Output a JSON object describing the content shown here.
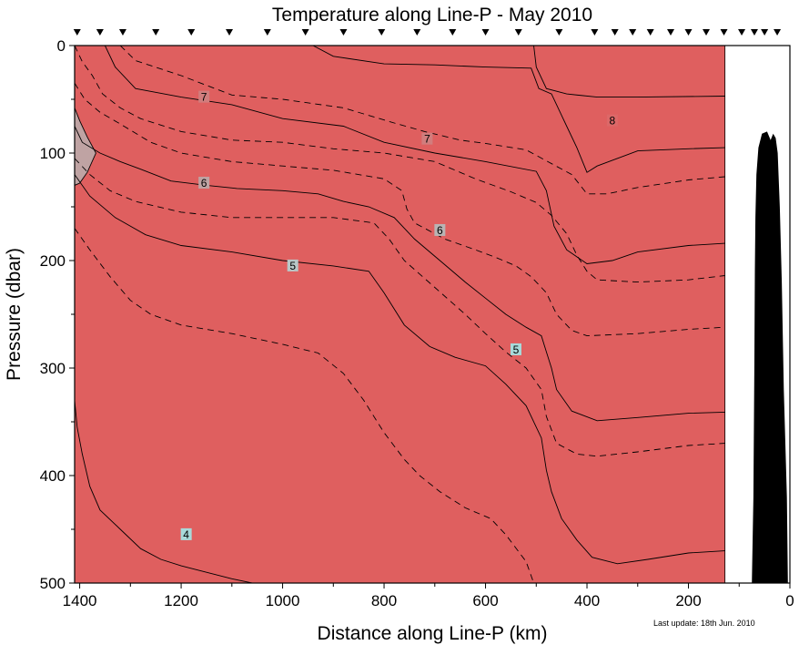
{
  "chart_data": {
    "type": "heatmap",
    "title": "Temperature along Line-P - May 2010",
    "xlabel": "Distance along Line-P (km)",
    "ylabel": "Pressure (dbar)",
    "footnote": "Last update: 18th Jun. 2010",
    "xlim": [
      1410,
      0
    ],
    "ylim": [
      500,
      0
    ],
    "xticks": [
      1400,
      1200,
      1000,
      800,
      600,
      400,
      200,
      0
    ],
    "yticks": [
      0,
      100,
      200,
      300,
      400,
      500
    ],
    "data_x_range": [
      1410,
      128
    ],
    "colors": {
      "warm": "#e15858",
      "mid": "#b7b7b7",
      "cold": "#a8dada",
      "seafloor": "#000000"
    },
    "color_stops": [
      {
        "t": 3.5,
        "c": "#a8dada"
      },
      {
        "t": 4.5,
        "c": "#b8c7c7"
      },
      {
        "t": 5.0,
        "c": "#b9b4b4"
      },
      {
        "t": 5.5,
        "c": "#bfa3a3"
      },
      {
        "t": 6.0,
        "c": "#c88f8f"
      },
      {
        "t": 6.5,
        "c": "#d17d7d"
      },
      {
        "t": 7.0,
        "c": "#d97171"
      },
      {
        "t": 7.5,
        "c": "#dc6868"
      },
      {
        "t": 8.0,
        "c": "#df5f5f"
      },
      {
        "t": 8.6,
        "c": "#e05656"
      }
    ],
    "stations_km": [
      1405,
      1360,
      1315,
      1250,
      1180,
      1105,
      1030,
      955,
      880,
      805,
      735,
      665,
      600,
      535,
      455,
      385,
      345,
      310,
      275,
      235,
      200,
      165,
      130,
      95,
      70,
      50,
      25
    ],
    "contours": [
      {
        "level": 8.5,
        "style": "dashed",
        "points": [
          [
            1410,
            -1
          ],
          [
            128,
            -1
          ]
        ]
      },
      {
        "level": 8,
        "style": "solid",
        "label": "8",
        "label_at": [
          350,
          70
        ],
        "points": [
          [
            940,
            0
          ],
          [
            900,
            10
          ],
          [
            800,
            17
          ],
          [
            700,
            18
          ],
          [
            600,
            20
          ],
          [
            510,
            21
          ],
          [
            495,
            40
          ],
          [
            470,
            45
          ],
          [
            440,
            75
          ],
          [
            420,
            95
          ],
          [
            400,
            118
          ],
          [
            380,
            112
          ],
          [
            300,
            98
          ],
          [
            200,
            96
          ],
          [
            128,
            95
          ]
        ]
      },
      {
        "level": 8,
        "style": "solid",
        "points": [
          [
            505,
            0
          ],
          [
            500,
            20
          ],
          [
            480,
            40
          ],
          [
            440,
            45
          ],
          [
            380,
            48
          ],
          [
            300,
            48
          ],
          [
            128,
            47
          ]
        ]
      },
      {
        "level": 7.5,
        "style": "dashed",
        "points": [
          [
            1320,
            0
          ],
          [
            1290,
            14
          ],
          [
            1200,
            28
          ],
          [
            1100,
            46
          ],
          [
            1000,
            50
          ],
          [
            880,
            58
          ],
          [
            780,
            72
          ],
          [
            720,
            80
          ],
          [
            650,
            88
          ],
          [
            600,
            91
          ],
          [
            520,
            97
          ],
          [
            430,
            120
          ],
          [
            400,
            138
          ],
          [
            360,
            138
          ],
          [
            300,
            132
          ],
          [
            200,
            125
          ],
          [
            128,
            122
          ]
        ]
      },
      {
        "level": 7,
        "style": "solid",
        "label": "7",
        "label_at": [
          1155,
          48
        ],
        "points": [
          [
            1350,
            0
          ],
          [
            1330,
            20
          ],
          [
            1290,
            40
          ],
          [
            1200,
            48
          ],
          [
            1100,
            55
          ],
          [
            1000,
            68
          ],
          [
            880,
            75
          ],
          [
            800,
            90
          ],
          [
            700,
            100
          ],
          [
            600,
            108
          ],
          [
            500,
            117
          ],
          [
            480,
            135
          ],
          [
            465,
            168
          ],
          [
            440,
            190
          ],
          [
            400,
            203
          ],
          [
            350,
            200
          ],
          [
            300,
            192
          ],
          [
            200,
            186
          ],
          [
            128,
            184
          ]
        ]
      },
      {
        "level": 7,
        "style": "dashed",
        "label": "7",
        "label_at": [
          715,
          87
        ],
        "points": [
          [
            1410,
            0
          ],
          [
            1395,
            15
          ],
          [
            1375,
            28
          ],
          [
            1355,
            45
          ],
          [
            1320,
            58
          ],
          [
            1280,
            68
          ],
          [
            1200,
            80
          ],
          [
            1100,
            88
          ],
          [
            1000,
            90
          ],
          [
            900,
            96
          ],
          [
            800,
            100
          ],
          [
            700,
            108
          ],
          [
            620,
            124
          ],
          [
            550,
            136
          ],
          [
            500,
            146
          ],
          [
            470,
            158
          ],
          [
            440,
            175
          ],
          [
            420,
            195
          ],
          [
            400,
            210
          ],
          [
            380,
            218
          ],
          [
            300,
            220
          ],
          [
            200,
            218
          ],
          [
            128,
            214
          ]
        ]
      },
      {
        "level": 6.5,
        "style": "dashed",
        "points": [
          [
            1410,
            35
          ],
          [
            1390,
            50
          ],
          [
            1360,
            62
          ],
          [
            1320,
            73
          ],
          [
            1260,
            90
          ],
          [
            1200,
            100
          ],
          [
            1100,
            108
          ],
          [
            1000,
            112
          ],
          [
            900,
            116
          ],
          [
            800,
            124
          ],
          [
            765,
            135
          ],
          [
            755,
            152
          ],
          [
            740,
            165
          ],
          [
            680,
            180
          ],
          [
            620,
            190
          ],
          [
            580,
            197
          ],
          [
            540,
            205
          ],
          [
            510,
            215
          ],
          [
            480,
            230
          ],
          [
            460,
            250
          ],
          [
            430,
            265
          ],
          [
            400,
            270
          ],
          [
            300,
            268
          ],
          [
            200,
            264
          ],
          [
            128,
            262
          ]
        ]
      },
      {
        "level": 6,
        "style": "solid",
        "label": "6",
        "label_at": [
          1155,
          128
        ],
        "points": [
          [
            1410,
            75
          ],
          [
            1395,
            90
          ],
          [
            1360,
            100
          ],
          [
            1320,
            108
          ],
          [
            1280,
            115
          ],
          [
            1220,
            126
          ],
          [
            1150,
            130
          ],
          [
            1090,
            133
          ],
          [
            1000,
            135
          ],
          [
            930,
            138
          ],
          [
            880,
            145
          ],
          [
            830,
            150
          ],
          [
            780,
            160
          ],
          [
            740,
            180
          ],
          [
            690,
            200
          ],
          [
            640,
            220
          ],
          [
            600,
            235
          ],
          [
            560,
            250
          ],
          [
            520,
            262
          ],
          [
            490,
            270
          ],
          [
            480,
            285
          ],
          [
            470,
            300
          ],
          [
            460,
            320
          ],
          [
            430,
            340
          ],
          [
            380,
            349
          ],
          [
            300,
            346
          ],
          [
            200,
            342
          ],
          [
            128,
            341
          ]
        ]
      },
      {
        "level": 5.5,
        "style": "dashed",
        "label": "6",
        "label_at": [
          690,
          172
        ],
        "points": [
          [
            1410,
            105
          ],
          [
            1380,
            120
          ],
          [
            1340,
            135
          ],
          [
            1290,
            145
          ],
          [
            1200,
            155
          ],
          [
            1100,
            160
          ],
          [
            1000,
            160
          ],
          [
            900,
            160
          ],
          [
            820,
            165
          ],
          [
            790,
            180
          ],
          [
            760,
            200
          ],
          [
            700,
            225
          ],
          [
            640,
            250
          ],
          [
            600,
            268
          ],
          [
            560,
            285
          ],
          [
            520,
            300
          ],
          [
            490,
            320
          ],
          [
            480,
            345
          ],
          [
            460,
            370
          ],
          [
            420,
            380
          ],
          [
            380,
            382
          ],
          [
            300,
            378
          ],
          [
            200,
            372
          ],
          [
            128,
            370
          ]
        ]
      },
      {
        "level": 5,
        "style": "solid",
        "label": "5",
        "label_at": [
          980,
          205
        ],
        "points": [
          [
            1410,
            120
          ],
          [
            1380,
            140
          ],
          [
            1330,
            160
          ],
          [
            1270,
            176
          ],
          [
            1200,
            186
          ],
          [
            1100,
            192
          ],
          [
            1000,
            200
          ],
          [
            900,
            205
          ],
          [
            830,
            210
          ],
          [
            800,
            230
          ],
          [
            760,
            260
          ],
          [
            710,
            280
          ],
          [
            660,
            290
          ],
          [
            600,
            298
          ],
          [
            560,
            315
          ],
          [
            520,
            335
          ],
          [
            490,
            365
          ],
          [
            480,
            395
          ],
          [
            470,
            415
          ],
          [
            450,
            440
          ],
          [
            420,
            460
          ],
          [
            390,
            476
          ],
          [
            340,
            482
          ],
          [
            280,
            478
          ],
          [
            200,
            472
          ],
          [
            128,
            470
          ]
        ]
      },
      {
        "level": 4.5,
        "style": "dashed",
        "label": "5",
        "label_at": [
          540,
          283
        ],
        "points": [
          [
            1410,
            170
          ],
          [
            1380,
            190
          ],
          [
            1340,
            215
          ],
          [
            1300,
            237
          ],
          [
            1260,
            250
          ],
          [
            1200,
            260
          ],
          [
            1100,
            268
          ],
          [
            1000,
            278
          ],
          [
            930,
            286
          ],
          [
            880,
            305
          ],
          [
            840,
            330
          ],
          [
            800,
            360
          ],
          [
            760,
            385
          ],
          [
            730,
            400
          ],
          [
            690,
            415
          ],
          [
            640,
            430
          ],
          [
            590,
            440
          ],
          [
            560,
            455
          ],
          [
            520,
            480
          ],
          [
            505,
            500
          ]
        ]
      },
      {
        "level": 4,
        "style": "solid",
        "label": "4",
        "label_at": [
          1190,
          455
        ],
        "points": [
          [
            1410,
            330
          ],
          [
            1405,
            355
          ],
          [
            1395,
            380
          ],
          [
            1380,
            410
          ],
          [
            1360,
            432
          ],
          [
            1320,
            450
          ],
          [
            1280,
            468
          ],
          [
            1240,
            478
          ],
          [
            1200,
            484
          ],
          [
            1150,
            490
          ],
          [
            1100,
            496
          ],
          [
            1060,
            500
          ]
        ]
      },
      {
        "level": 4,
        "style": "solid",
        "points": [
          [
            1410,
            58
          ],
          [
            1400,
            70
          ],
          [
            1385,
            85
          ],
          [
            1368,
            100
          ],
          [
            1385,
            118
          ],
          [
            1400,
            128
          ],
          [
            1410,
            130
          ]
        ]
      }
    ],
    "seafloor_depth_dbar": [
      [
        128,
        500
      ],
      [
        75,
        500
      ],
      [
        72,
        420
      ],
      [
        70,
        290
      ],
      [
        69,
        210
      ],
      [
        68,
        160
      ],
      [
        66,
        120
      ],
      [
        62,
        95
      ],
      [
        55,
        82
      ],
      [
        45,
        80
      ],
      [
        38,
        88
      ],
      [
        33,
        82
      ],
      [
        28,
        86
      ],
      [
        24,
        100
      ],
      [
        20,
        150
      ],
      [
        16,
        220
      ],
      [
        12,
        320
      ],
      [
        6,
        420
      ],
      [
        4,
        500
      ],
      [
        0,
        500
      ]
    ]
  }
}
